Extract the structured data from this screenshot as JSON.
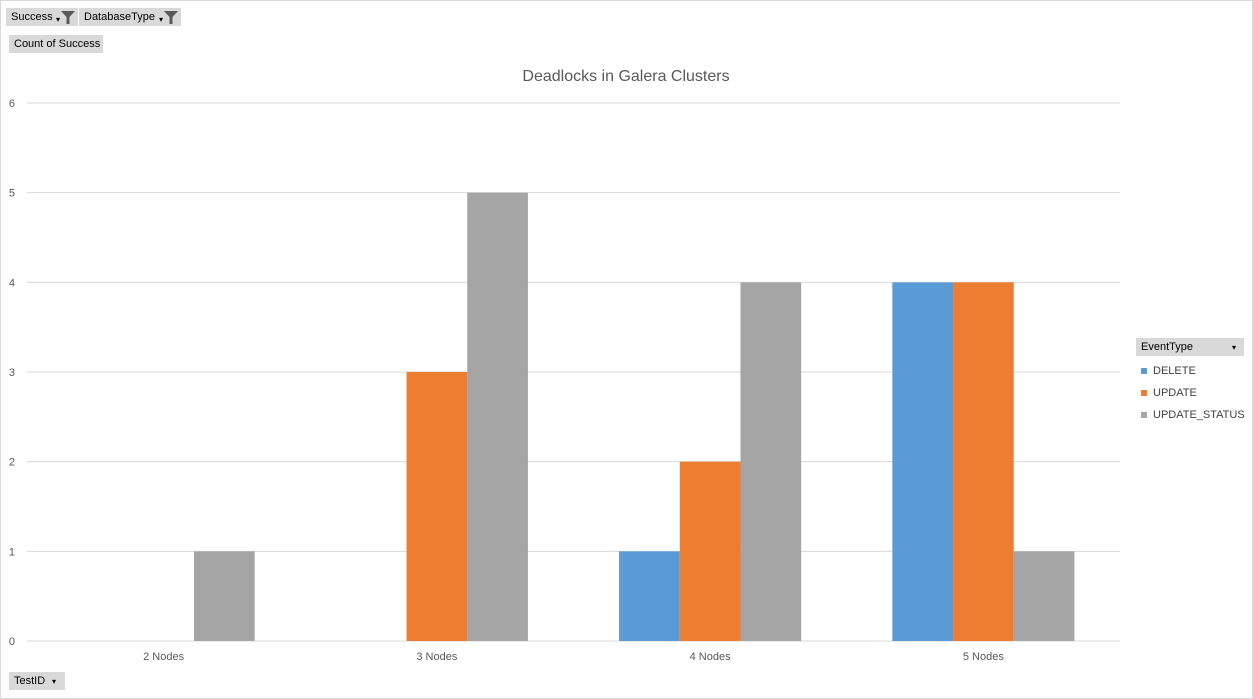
{
  "pivot": {
    "filter_fields": [
      {
        "label": "Success"
      },
      {
        "label": "DatabaseType"
      }
    ],
    "value_field": "Count of  Success",
    "axis_field": "TestID"
  },
  "legend": {
    "header": "EventType",
    "items": [
      {
        "label": "DELETE",
        "color": "#5b9bd5"
      },
      {
        "label": "UPDATE",
        "color": "#ed7d31"
      },
      {
        "label": "UPDATE_STATUS",
        "color": "#a5a5a5"
      }
    ]
  },
  "colors": {
    "delete": "#5b9bd5",
    "update": "#ed7d31",
    "update_status": "#a5a5a5",
    "gridline": "#d9d9d9",
    "field_button": "#d9d9d9"
  },
  "chart_data": {
    "type": "bar",
    "title": "Deadlocks in Galera Clusters",
    "xlabel": "",
    "ylabel": "",
    "categories": [
      "2 Nodes",
      "3 Nodes",
      "4 Nodes",
      "5 Nodes"
    ],
    "series": [
      {
        "name": "DELETE",
        "color": "#5b9bd5",
        "values": [
          null,
          null,
          1,
          4
        ]
      },
      {
        "name": "UPDATE",
        "color": "#ed7d31",
        "values": [
          null,
          3,
          2,
          4
        ]
      },
      {
        "name": "UPDATE_STATUS",
        "color": "#a5a5a5",
        "values": [
          1,
          5,
          4,
          1
        ]
      }
    ],
    "ylim": [
      0,
      6
    ],
    "yticks": [
      "0",
      "1",
      "2",
      "3",
      "4",
      "5",
      "6"
    ],
    "grid": true,
    "legend_position": "right"
  }
}
